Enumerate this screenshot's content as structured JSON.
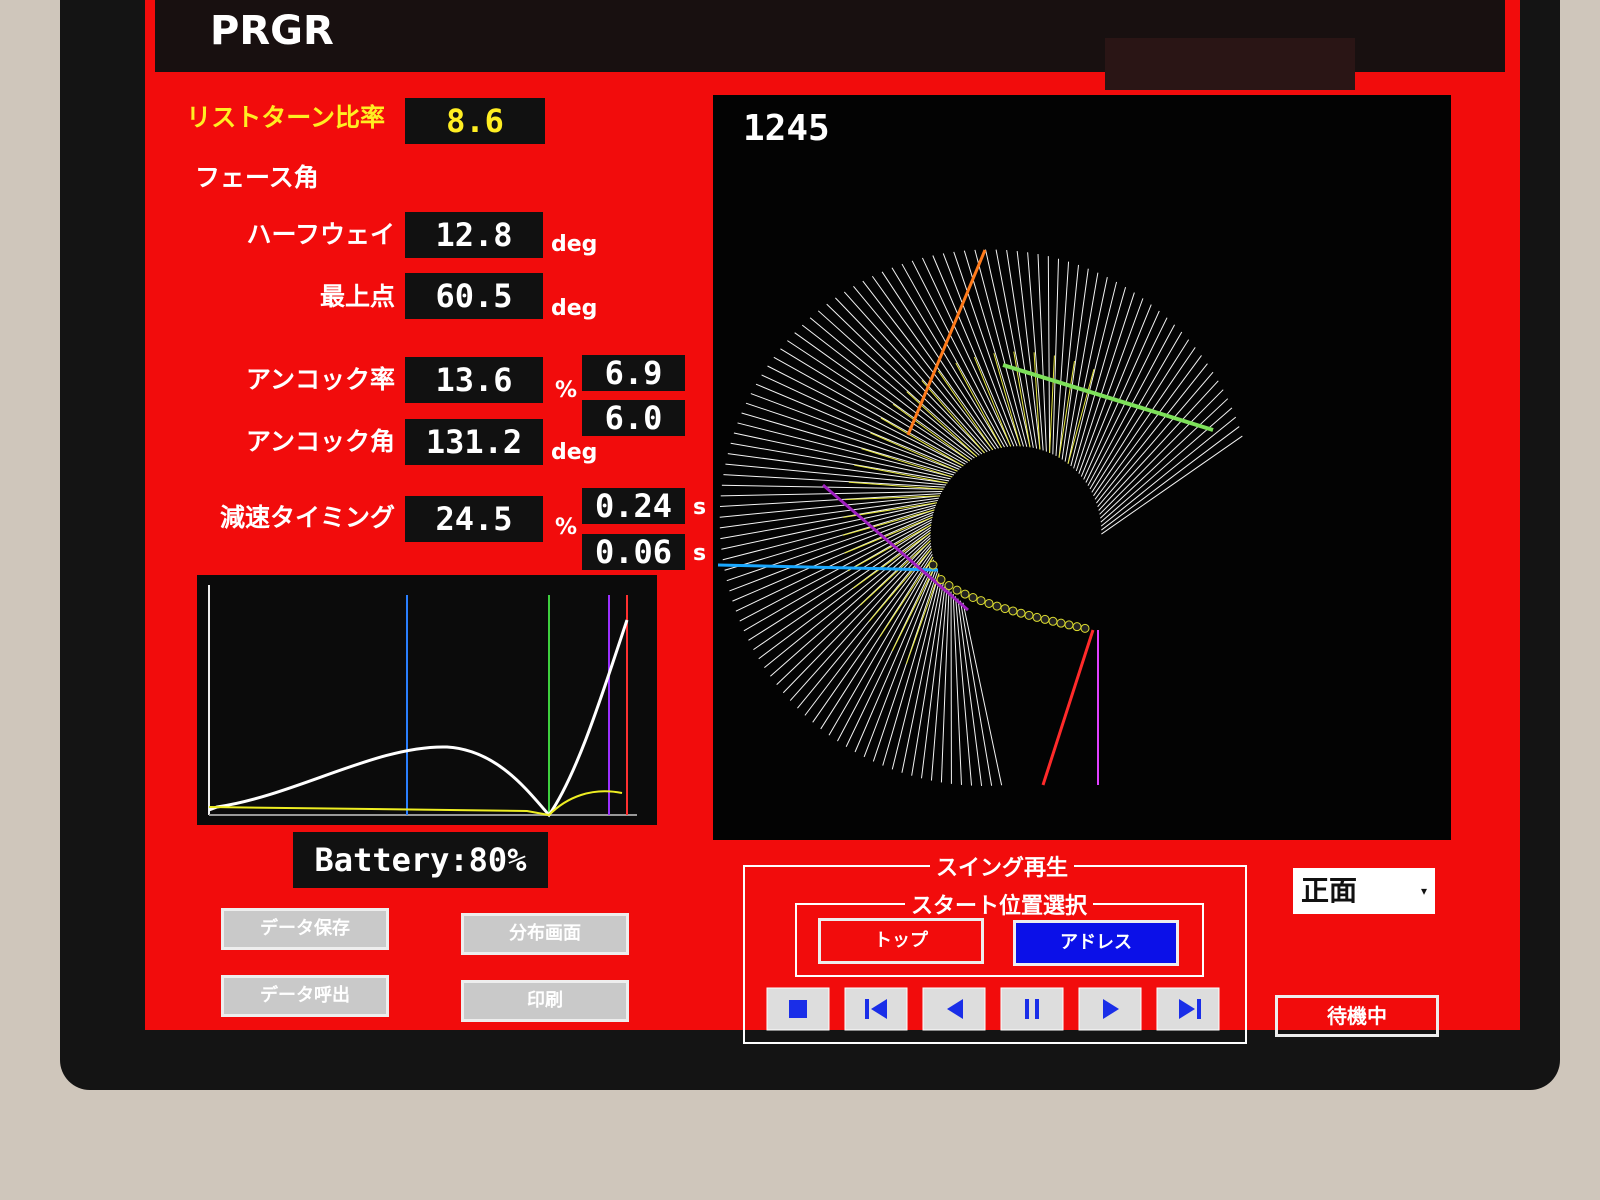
{
  "header": {
    "title": "PRGR"
  },
  "metrics": {
    "wrist_turn": {
      "label": "リストターン比率",
      "value": "8.6"
    },
    "face_angle": {
      "label": "フェース角"
    },
    "halfway": {
      "label": "ハーフウェイ",
      "value": "12.8",
      "unit": "deg"
    },
    "top": {
      "label": "最上点",
      "value": "60.5",
      "unit": "deg"
    },
    "uncock_rate": {
      "label": "アンコック率",
      "value": "13.6",
      "unit": "%",
      "side": [
        "6.9",
        "6.0"
      ]
    },
    "uncock_angle": {
      "label": "アンコック角",
      "value": "131.2",
      "unit": "deg"
    },
    "decel": {
      "label": "減速タイミング",
      "value": "24.5",
      "unit": "%",
      "side": [
        "0.24",
        "0.06"
      ],
      "side_unit": [
        "s",
        "s"
      ]
    }
  },
  "swing_view": {
    "frame": "1245"
  },
  "battery": "Battery:80%",
  "buttons": [
    "データ保存",
    "分布画面",
    "データ呼出",
    "印刷"
  ],
  "playback": {
    "title": "スイング再生",
    "start_select": {
      "title": "スタート位置選択",
      "options": [
        "トップ",
        "アドレス"
      ]
    }
  },
  "view_select": "正面",
  "status": "待機中"
}
